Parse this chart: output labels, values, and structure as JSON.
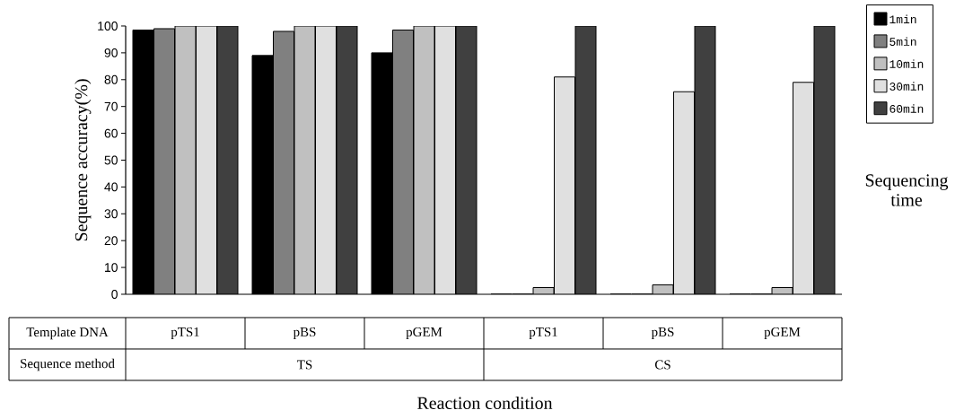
{
  "chart_data": {
    "type": "bar",
    "ylabel": "Sequence accuracy(%)",
    "xlabel": "Reaction condition",
    "legend_title": "Sequencing time",
    "categories": [
      "pTS1",
      "pBS",
      "pGEM",
      "pTS1",
      "pBS",
      "pGEM"
    ],
    "annotations": [
      "Template DNA",
      "Sequence method",
      "TS",
      "CS"
    ],
    "series": [
      {
        "name": "1min",
        "color": "#000000",
        "values": [
          98.5,
          89,
          90,
          0,
          0,
          0
        ]
      },
      {
        "name": "5min",
        "color": "#808080",
        "values": [
          99,
          98,
          98.5,
          0,
          0,
          0
        ]
      },
      {
        "name": "10min",
        "color": "#c0c0c0",
        "values": [
          100,
          100,
          100,
          2.5,
          3.5,
          2.5
        ]
      },
      {
        "name": "30min",
        "color": "#e0e0e0",
        "values": [
          100,
          100,
          100,
          81,
          75.5,
          79
        ]
      },
      {
        "name": "60min",
        "color": "#404040",
        "values": [
          100,
          100,
          100,
          100,
          100,
          100
        ]
      }
    ],
    "ylim": [
      0,
      100
    ],
    "yticks": [
      0,
      10,
      20,
      30,
      40,
      50,
      60,
      70,
      80,
      90,
      100
    ],
    "grid": false,
    "legend": "right"
  }
}
